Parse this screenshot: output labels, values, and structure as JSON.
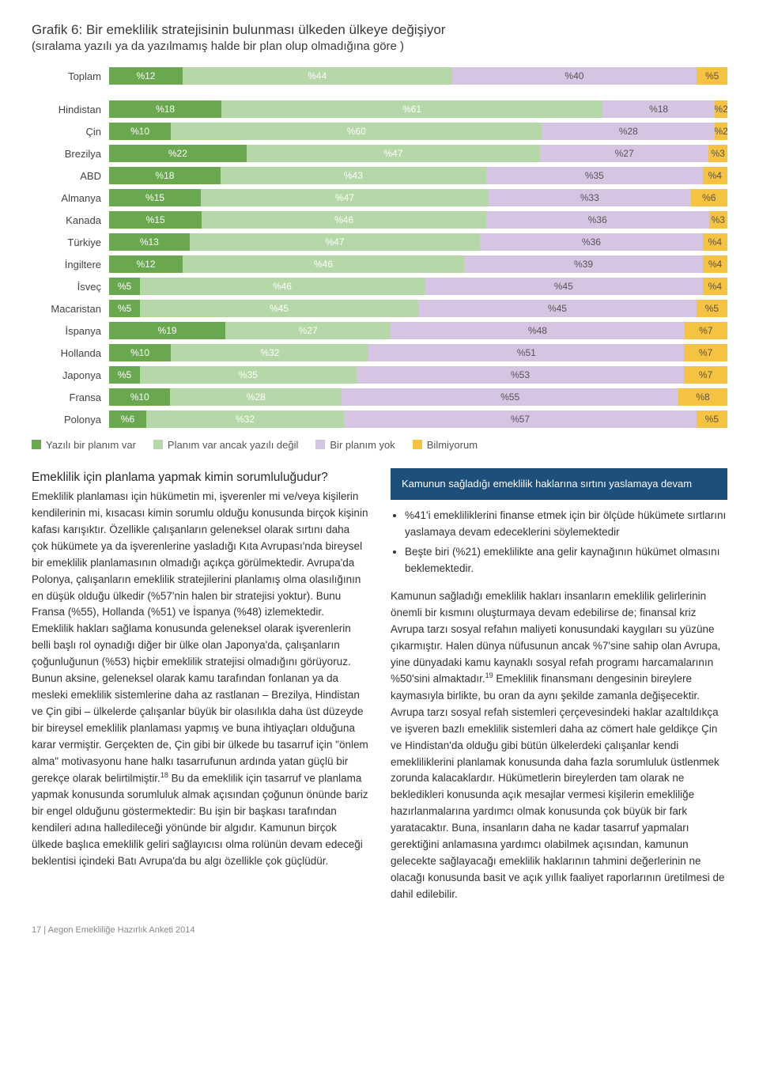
{
  "chart": {
    "title": "Grafik 6: Bir emeklilik stratejisinin bulunması ülkeden ülkeye değişiyor",
    "subtitle": "(sıralama yazılı ya da yazılmamış halde bir plan olup olmadığına göre )",
    "colors": [
      "#6aa84f",
      "#b6d7a8",
      "#d5c5e2",
      "#f5c242"
    ],
    "total": {
      "label": "Toplam",
      "values": [
        12,
        44,
        40,
        5
      ]
    },
    "rows": [
      {
        "label": "Hindistan",
        "values": [
          18,
          61,
          18,
          2
        ]
      },
      {
        "label": "Çin",
        "values": [
          10,
          60,
          28,
          2
        ]
      },
      {
        "label": "Brezilya",
        "values": [
          22,
          47,
          27,
          3
        ]
      },
      {
        "label": "ABD",
        "values": [
          18,
          43,
          35,
          4
        ]
      },
      {
        "label": "Almanya",
        "values": [
          15,
          47,
          33,
          6
        ]
      },
      {
        "label": "Kanada",
        "values": [
          15,
          46,
          36,
          3
        ]
      },
      {
        "label": "Türkiye",
        "values": [
          13,
          47,
          36,
          4
        ]
      },
      {
        "label": "İngiltere",
        "values": [
          12,
          46,
          39,
          4
        ]
      },
      {
        "label": "İsveç",
        "values": [
          5,
          46,
          45,
          4
        ]
      },
      {
        "label": "Macaristan",
        "values": [
          5,
          45,
          45,
          5
        ]
      },
      {
        "label": "İspanya",
        "values": [
          19,
          27,
          48,
          7
        ]
      },
      {
        "label": "Hollanda",
        "values": [
          10,
          32,
          51,
          7
        ]
      },
      {
        "label": "Japonya",
        "values": [
          5,
          35,
          53,
          7
        ]
      },
      {
        "label": "Fransa",
        "values": [
          10,
          28,
          55,
          8
        ]
      },
      {
        "label": "Polonya",
        "values": [
          6,
          32,
          57,
          5
        ]
      }
    ],
    "legend": [
      "Yazılı bir planım var",
      "Planım var ancak yazılı değil",
      "Bir planım yok",
      "Bilmiyorum"
    ]
  },
  "left": {
    "heading": "Emeklilik için planlama yapmak kimin sorumluluğudur?",
    "p1": "Emeklilik planlaması için hükümetin mi, işverenler mi ve/veya kişilerin kendilerinin mi, kısacası kimin sorumlu olduğu konusunda birçok kişinin kafası karışıktır. Özellikle çalışanların geleneksel olarak sırtını daha çok hükümete ya da işverenlerine yasladığı Kıta Avrupası'nda bireysel bir emeklilik planlamasının olmadığı açıkça görülmektedir. Avrupa'da Polonya, çalışanların emeklilik stratejilerini planlamış olma olasılığının en düşük olduğu ülkedir (%57'nin halen bir stratejisi yoktur). Bunu Fransa (%55), Hollanda (%51) ve İspanya (%48) izlemektedir. Emeklilik hakları sağlama konusunda geleneksel olarak işverenlerin belli başlı rol oynadığı diğer bir ülke olan Japonya'da, çalışanların çoğunluğunun (%53) hiçbir emeklilik stratejisi olmadığını görüyoruz.",
    "p2": "Bunun aksine, geleneksel olarak kamu tarafından fonlanan ya da mesleki emeklilik sistemlerine daha az rastlanan – Brezilya, Hindistan ve Çin gibi – ülkelerde çalışanlar büyük bir olasılıkla daha üst düzeyde bir bireysel emeklilik planlaması yapmış ve buna ihtiyaçları olduğuna karar vermiştir. Gerçekten de, Çin gibi bir ülkede bu tasarruf için \"önlem alma\" motivasyonu hane halkı tasarrufunun ardında yatan güçlü bir gerekçe olarak belirtilmiştir.",
    "p2_note": "18",
    "p3": " Bu da emeklilik için tasarruf ve planlama yapmak konusunda sorumluluk almak açısından çoğunun önünde bariz bir engel olduğunu göstermektedir: Bu işin bir başkası tarafından kendileri adına halledileceği yönünde bir algıdır. Kamunun birçok ülkede başlıca emeklilik geliri sağlayıcısı olma rolünün devam edeceği beklentisi içindeki Batı Avrupa'da bu algı özellikle çok güçlüdür."
  },
  "right": {
    "callout": "Kamunun sağladığı emeklilik haklarına sırtını yaslamaya devam",
    "bullets": [
      "%41'i emekliliklerini finanse etmek için bir ölçüde hükümete sırtlarını yaslamaya devam edeceklerini söylemektedir",
      "Beşte biri (%21) emeklilikte ana gelir kaynağının hükümet olmasını  beklemektedir."
    ],
    "p1": "Kamunun sağladığı emeklilik hakları insanların emeklilik gelirlerinin önemli bir kısmını oluşturmaya devam edebilirse de; finansal kriz Avrupa tarzı sosyal refahın maliyeti konusundaki kaygıları su yüzüne çıkarmıştır. Halen dünya nüfusunun ancak %7'sine sahip olan Avrupa, yine dünyadaki kamu kaynaklı sosyal refah programı harcamalarının %50'sini almaktadır.",
    "p1_note": "19",
    "p2": " Emeklilik finansmanı dengesinin bireylere kaymasıyla birlikte, bu oran da aynı şekilde zamanla değişecektir. Avrupa tarzı sosyal refah sistemleri çerçevesindeki haklar azaltıldıkça ve işveren bazlı emeklilik sistemleri daha az cömert hale geldikçe Çin ve Hindistan'da olduğu gibi bütün ülkelerdeki çalışanlar kendi emekliliklerini planlamak konusunda daha fazla sorumluluk üstlenmek zorunda kalacaklardır. Hükümetlerin bireylerden tam olarak ne bekledikleri konusunda açık mesajlar vermesi kişilerin emekliliğe hazırlanmalarına yardımcı olmak konusunda çok büyük bir fark yaratacaktır. Buna, insanların daha ne kadar tasarruf yapmaları gerektiğini anlamasına yardımcı olabilmek açısından, kamunun gelecekte sağlayacağı emeklilik haklarının tahmini değerlerinin ne olacağı konusunda basit ve açık yıllık faaliyet raporlarının üretilmesi de dahil edilebilir."
  },
  "footer": {
    "page_no": "17",
    "sep": " | ",
    "title": "Aegon Emekliliğe Hazırlık Anketi 2014"
  }
}
